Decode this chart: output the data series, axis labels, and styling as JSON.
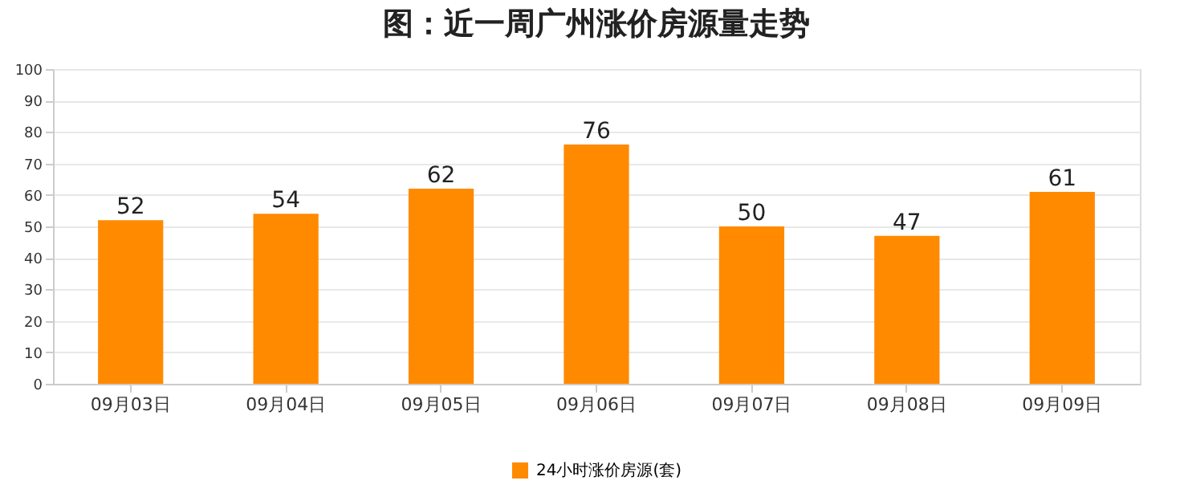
{
  "chart_data": {
    "type": "bar",
    "title": "图：近一周广州涨价房源量走势",
    "categories": [
      "09月03日",
      "09月04日",
      "09月05日",
      "09月06日",
      "09月07日",
      "09月08日",
      "09月09日"
    ],
    "series": [
      {
        "name": "24小时涨价房源(套)",
        "color": "#ff8a00",
        "values": [
          52,
          54,
          62,
          76,
          50,
          47,
          61
        ]
      }
    ],
    "ylim": [
      0,
      100
    ],
    "yticks": [
      0,
      10,
      20,
      30,
      40,
      50,
      60,
      70,
      80,
      90,
      100
    ],
    "grid": "y",
    "legend": "bottom",
    "data_labels": true
  }
}
